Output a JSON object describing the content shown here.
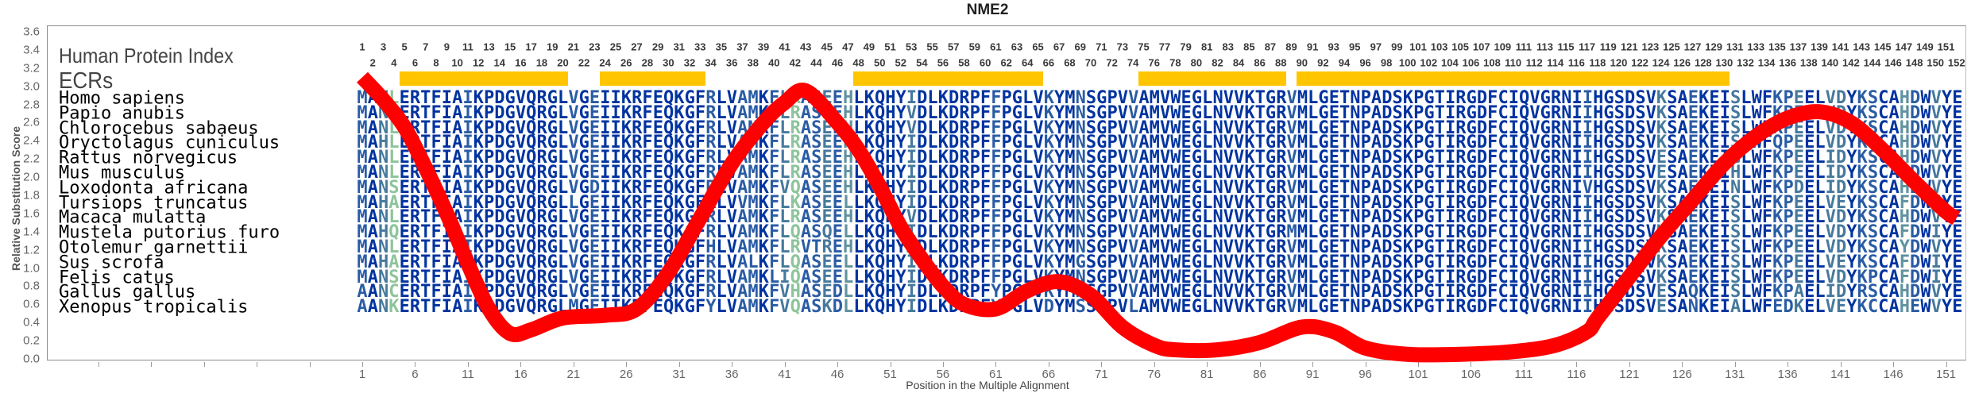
{
  "title": "NME2",
  "chart_data": {
    "type": "line",
    "title": "NME2",
    "xlabel": "Position in the Multiple Alignment",
    "ylabel": "Relative Substitution Score",
    "xlim": [
      1,
      152
    ],
    "ylim": [
      0,
      3.6
    ],
    "grid": false,
    "yticks": [
      "0.0",
      "0.2",
      "0.4",
      "0.6",
      "0.8",
      "1.0",
      "1.2",
      "1.4",
      "1.6",
      "1.8",
      "2.0",
      "2.2",
      "2.4",
      "2.6",
      "2.8",
      "3.0",
      "3.2",
      "3.4",
      "3.6"
    ],
    "xticks": [
      "1",
      "6",
      "11",
      "16",
      "21",
      "26",
      "31",
      "36",
      "41",
      "46",
      "51",
      "56",
      "61",
      "66",
      "71",
      "76",
      "81",
      "86",
      "91",
      "96",
      "101",
      "106",
      "111",
      "116",
      "121",
      "126",
      "131",
      "136",
      "141",
      "146",
      "151"
    ],
    "series": [
      {
        "name": "Relative Substitution Score",
        "color": "#ff0000",
        "x": [
          1,
          3,
          5,
          7,
          9,
          11,
          13,
          15,
          17,
          20,
          24,
          27,
          30,
          33,
          36,
          39,
          41,
          43,
          46,
          48,
          50,
          52,
          54,
          56,
          58,
          61,
          64,
          67,
          70,
          73,
          76,
          78,
          82,
          86,
          90,
          93,
          96,
          100,
          105,
          110,
          114,
          117,
          118,
          121,
          124,
          127,
          130,
          133,
          136,
          139,
          142,
          145,
          148,
          151,
          152
        ],
        "y": [
          3.1,
          2.85,
          2.55,
          2.1,
          1.6,
          1.05,
          0.55,
          0.28,
          0.32,
          0.45,
          0.48,
          0.55,
          0.95,
          1.55,
          2.15,
          2.6,
          2.82,
          2.95,
          2.6,
          2.3,
          1.9,
          1.45,
          1.1,
          0.8,
          0.6,
          0.55,
          0.75,
          0.85,
          0.7,
          0.35,
          0.15,
          0.1,
          0.1,
          0.18,
          0.35,
          0.3,
          0.12,
          0.05,
          0.05,
          0.08,
          0.15,
          0.3,
          0.45,
          0.9,
          1.35,
          1.75,
          2.15,
          2.45,
          2.65,
          2.72,
          2.6,
          2.3,
          1.95,
          1.62,
          1.55
        ]
      }
    ]
  },
  "alignment": {
    "index_label": "Human Protein Index",
    "ecr_label": "ECRs",
    "index_range": [
      1,
      152
    ],
    "ecr_color": "#ffc600",
    "ecrs": [
      [
        5,
        20
      ],
      [
        24,
        33
      ],
      [
        48,
        65
      ],
      [
        75,
        88
      ],
      [
        90,
        130
      ]
    ],
    "conservation_colors": [
      "#0033a0",
      "#2a5ca4",
      "#46799c",
      "#5f93a0",
      "#8dc49b"
    ],
    "sequences": [
      {
        "species": "Homo sapiens",
        "seq": "MANLERTFIAIKPDGVQRGLVGEIIKRFEQKGFRLVAMKFLRASEEHLKQHYIDLKDRPFFPGLVKYMNSGPVVAMVWEGLNVVKTGRVMLGETNPADSKPGTIRGDFCIQVGRNIIHGSDSVKSAEKEISLWFKPEELVDYKSCAHDWVYE"
      },
      {
        "species": "Papio anubis",
        "seq": "MANLERTFIAIKPDGVQRGLVGEIIKRFEQKGFRLVAMKFLRASEEHLKQHYVDLKDRPFFPGLVKYMNSGPVVAMVWEGLNVVKTGRVMLGETNPADSKPGTIRGDFCIQVGRNIIHGSDSVKSAEKEISLWFKPEELVDYKSCAHDWVYE"
      },
      {
        "species": "Chlorocebus sabaeus",
        "seq": "MANLERTFIAIKPDGVQRGLVGEIIKRFEQKGFRLVAMKFLRASEEHLKQHYVDLKDRPFFPGLVKYMNSGPVVAMVWEGLNVVKTGRVMLGETNPADSKPGTIRGDFCIQVGRNIIHGSDSVKSAEKEISLWFKPEELVDYKSCAHDWVYE"
      },
      {
        "species": "Oryctolagus cuniculus",
        "seq": "MAHLERTFIAIKPDGVQRGLVGEIIKRFEQKGFRLVAMKFLRASEEHLKQHYIDLKDRPFFPGLVKYMNSGPVVAMVWEGLNVVKTGRVMLGETNPADSKPGTIRGDFCIQVGRNIIHGSDSVKSAEKEISLWFQPEELVDYKSCAHDWVYE"
      },
      {
        "species": "Rattus norvegicus",
        "seq": "MANLERTFIAIKPDGVQRGLVGEIIKRFEQKGFRLVAMKFLRASEEHLKQHYIDLKDRPFFPGLVKYMNSGPVVAMVWEGLNVVKTGRVMLGETNPADSKPGTIRGDFCIQVGRNIIHGSDSVESAEKEIGLWFKPEELIDYKSCAHDWVYE"
      },
      {
        "species": "Mus musculus",
        "seq": "MANLERTFIAIKPDGVQRGLVGEIIKRFEQKGFRLVAMKFLRASEEHLKQHYIDLKDRPFFPGLVKYMNSGPVVAMVWEGLNVVKTGRVMLGETNPADSKPGTIRGDFCIQVGRNIIHGSDSVESAEKEIHLWFKPEELIDYKSCAHDWVYE"
      },
      {
        "species": "Loxodonta africana",
        "seq": "MANSERTFIAIKPDGVQRGLVGDIIKRFEQKGFRLVAMKFVQASEEHLKQHYIDLKDRPFFPGLVKYMNSGPVVAMVWEGLNVVKTGRVMLGETNPADSKPGTIRGDFCIQVGRNIVHGSDSVKSAEKEINLWFKPDELIDYKSCAHDWVYE"
      },
      {
        "species": "Tursiops truncatus",
        "seq": "MAHAERTFIAIKPDGVQRGLLGEIIKRFEQKGFRLVVMKFLKASEELLKQHYIDLKDRPFFPGLVKYMNSGPVVAMVWEGLNVVKTGRVMLGETNPADSKPGTIRGDFCIQVGRNIIHGSDSVKSAEKEISLWFKPEELVEYKSCAFDWIYE"
      },
      {
        "species": "Macaca mulatta",
        "seq": "MANLERTFIAIKPDGVQRGLVGEIIKRFEQKGFRLVAMKFLRASEEHLKQHYVDLKDRPFFPGLVKYMNSGPVVAMVWEGLNVVKTGRVMLGETNPADSKPGTIRGDFCIQVGRNIIHGSDSVKSAEKEISLWFKPEELVDYKSCAHDWVYE"
      },
      {
        "species": "Mustela putorius furo",
        "seq": "MAHQERTFIAIKPDGVQRGLVGEIIKRFEQKGFRLVAMKFLQASQELLKQHYIDLKDRPFFPGLVKYMNSGPVVAMVWEGLNVVKTGRMMLGETNPADSKPGTIRGDFCIQVGRNIIHGSDSVKSAEKEISLWFKPEELVDYKSCAFDWIYE"
      },
      {
        "species": "Otolemur garnettii",
        "seq": "MANLERTFIAIKPDGVQRGLVGEIIKRFEQKGFHLVAMKFLRVTREHLKQHYADLKDRPFFPGLVKYMNSGPVVAMVWEGLNVVKTGRVMLGETNPADSKPGTIRGDFCIQVGRNIIHGSDSVKSAEKEISLWFKPEELVDYKSCAYDWVYE"
      },
      {
        "species": "Sus scrofa",
        "seq": "MAHAERTFIAVKPDGVQRGLVGEIIKRFEQKGFRLVALKFLQASEELLKQHYIDLKDRPFFPGLVKYMGSGPVVAMVWEGLNVVKTGRVMLGETNPADSKPGTIRGDFCIQVGRNIIHGSDSVKSAEKEISLWFKPEELVEYKSCAFDWIYE"
      },
      {
        "species": "Felis catus",
        "seq": "MANSERTFIAIKPDGVQRGLVGEIIKRFEQKGFRLVAMKLIQASEELLKQHYIDLKDRPFFPGLVKYMNSGPVVAMVWEGLNVVKTGRVMLGETNPADSKPGTIRGDFCIQVGRNIIHGSDSVKSAEKEISLWFKPEELVDYKPCAFDWIYE"
      },
      {
        "species": "Gallus gallus",
        "seq": "AANCERTFIAIKPDGVQRGLVGEIIKRFEQKGFRLVAMKFVHASEDLLKQHYIDLKDRPFYPGLVKYMNSGPVVAMVWEGLNVVKTGRVMLGETNPADSKPGTIRGDFCIQVGRNIIHGSDSVESAQKEISLWFKPAELIDYRSCAHDWVYE"
      },
      {
        "species": "Xenopus tropicalis",
        "seq": "AANKERTFIAIKPDGVQRGLMGEIIKRFEQKGFYLVAMKFVQASKDLLKQHYIDLKDRPFYPGLVDYMSSGPVLAMVWEGLNVVKTGRVMLGETNPADSKPGTIRGDFCIQVGRNIIHGSDSVESANKEIALWFEDKELVEYKCCAHEWVYE"
      }
    ]
  }
}
